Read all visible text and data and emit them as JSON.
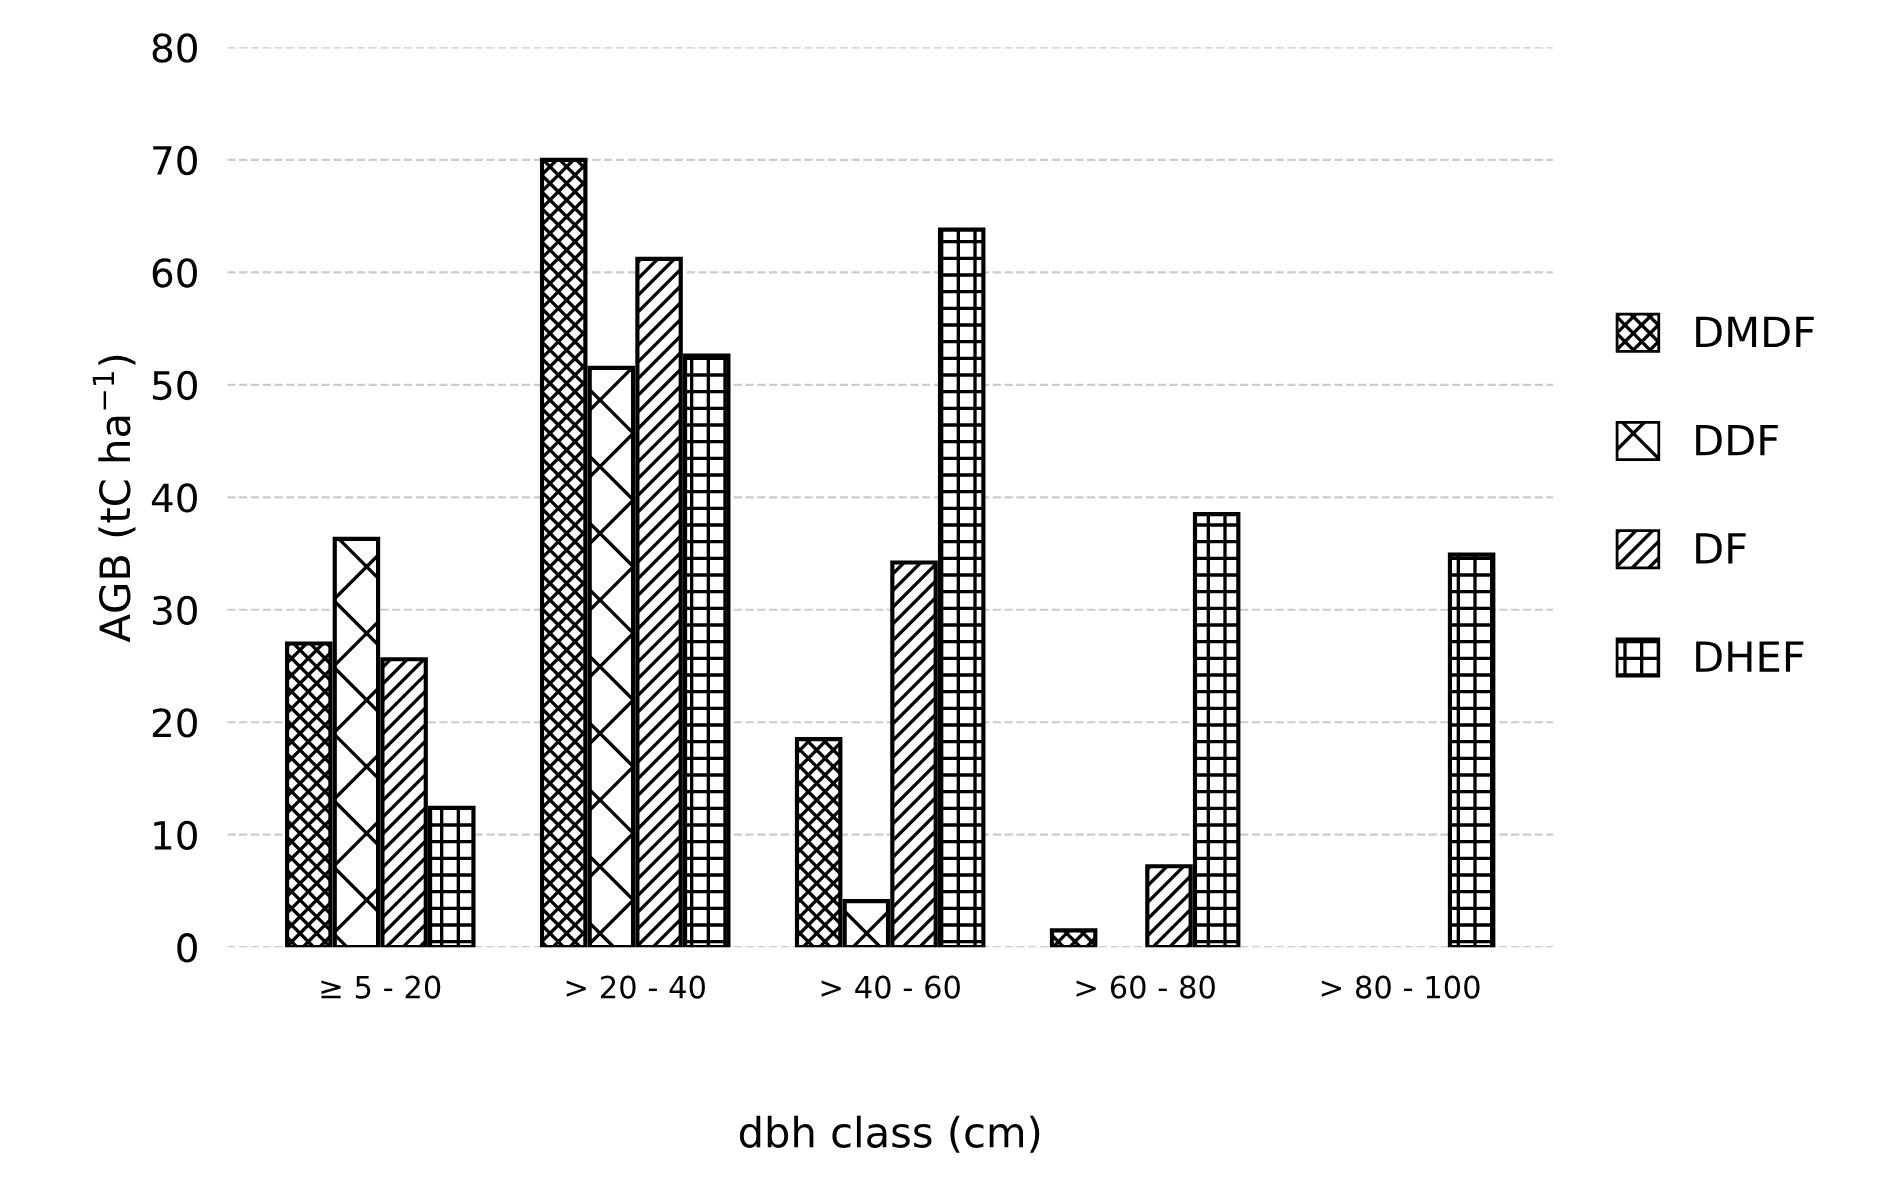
{
  "chart_data": {
    "type": "bar",
    "xlabel": "dbh class (cm)",
    "ylabel": "AGB (tC ha$^{−1}$)",
    "categories": [
      "≥ 5 - 20",
      "> 20 - 40",
      "> 40 - 60",
      "> 60 - 80",
      "> 80 - 100"
    ],
    "series": [
      {
        "name": "DMDF",
        "color": "#000000",
        "values": [
          27.0,
          70.0,
          18.5,
          1.5,
          null
        ]
      },
      {
        "name": "DDF",
        "color": "#000000",
        "values": [
          36.3,
          51.5,
          4.1,
          null,
          null
        ]
      },
      {
        "name": "DF",
        "color": "#000000",
        "values": [
          25.6,
          61.2,
          34.2,
          7.2,
          null
        ]
      },
      {
        "name": "DHEF",
        "color": "#000000",
        "values": [
          12.4,
          52.6,
          63.8,
          38.5,
          34.9
        ]
      }
    ],
    "ylim": [
      0,
      80
    ],
    "yticks": [
      0,
      10,
      20,
      30,
      40,
      50,
      60,
      70,
      80
    ],
    "grid": "y",
    "legend": "right"
  }
}
